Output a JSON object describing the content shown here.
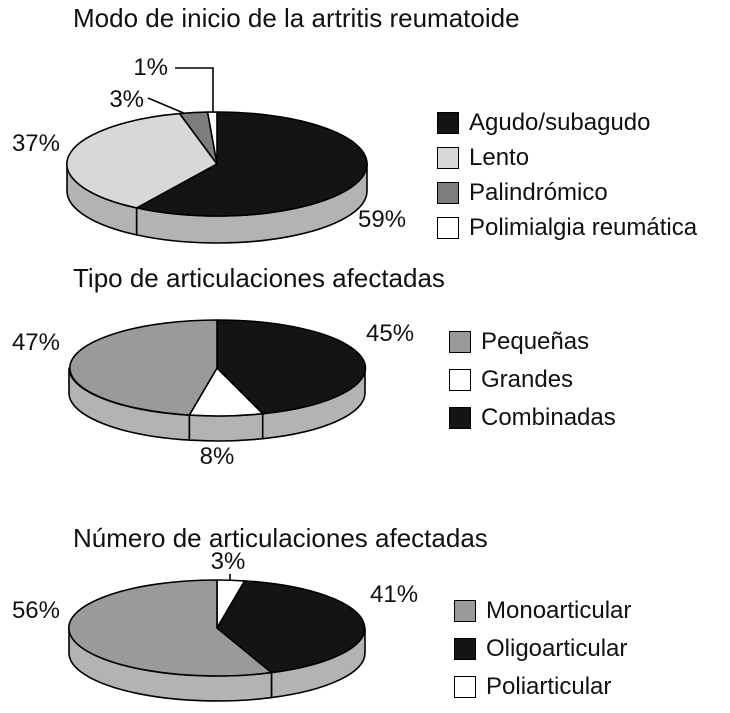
{
  "figure": {
    "background": "#ffffff",
    "outline_color": "#000000"
  },
  "colors": {
    "black": "#141414",
    "light_gray": "#d8d8d8",
    "mid_gray": "#9a9a9a",
    "dark_gray": "#7d7d7d",
    "white": "#ffffff",
    "rim_gray": "#b3b3b3"
  },
  "chart_data": [
    {
      "type": "pie",
      "style": "3d-pie",
      "title": "Modo de inicio de la artritis reumatoide",
      "start_angle_deg": 0,
      "direction": "clockwise",
      "rim_color": "#b3b3b3",
      "legend_position": "right",
      "slices": [
        {
          "label": "Agudo/subagudo",
          "value": 59,
          "pct_label": "59%",
          "color": "#141414"
        },
        {
          "label": "Lento",
          "value": 37,
          "pct_label": "37%",
          "color": "#d8d8d8"
        },
        {
          "label": "Palindrómico",
          "value": 3,
          "pct_label": "3%",
          "color": "#7d7d7d"
        },
        {
          "label": "Polimialgia reumática",
          "value": 1,
          "pct_label": "1%",
          "color": "#ffffff"
        }
      ],
      "draw_sequence": [
        0,
        1,
        2,
        3
      ]
    },
    {
      "type": "pie",
      "style": "3d-pie",
      "title": "Tipo de articulaciones afectadas",
      "start_angle_deg": 0,
      "direction": "clockwise",
      "rim_color": "#b3b3b3",
      "legend_position": "right",
      "slices": [
        {
          "label": "Pequeñas",
          "value": 47,
          "pct_label": "47%",
          "color": "#9a9a9a"
        },
        {
          "label": "Grandes",
          "value": 8,
          "pct_label": "8%",
          "color": "#ffffff"
        },
        {
          "label": "Combinadas",
          "value": 45,
          "pct_label": "45%",
          "color": "#141414"
        }
      ],
      "draw_sequence": [
        2,
        1,
        0
      ]
    },
    {
      "type": "pie",
      "style": "3d-pie",
      "title": "Número de articulaciones afectadas",
      "start_angle_deg": 0,
      "direction": "clockwise",
      "rim_color": "#b3b3b3",
      "legend_position": "right",
      "slices": [
        {
          "label": "Monoarticular",
          "value": 56,
          "pct_label": "56%",
          "color": "#9a9a9a"
        },
        {
          "label": "Oligoarticular",
          "value": 41,
          "pct_label": "41%",
          "color": "#141414"
        },
        {
          "label": "Poliarticular",
          "value": 3,
          "pct_label": "3%",
          "color": "#ffffff"
        }
      ],
      "draw_sequence": [
        2,
        1,
        0
      ]
    }
  ]
}
